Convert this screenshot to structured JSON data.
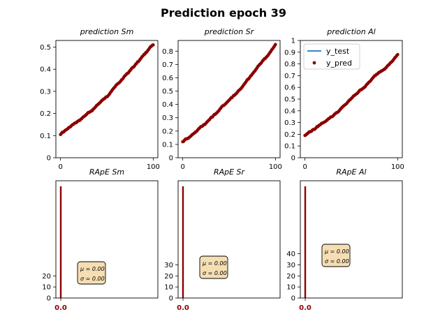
{
  "figure": {
    "title": "Prediction epoch 39"
  },
  "colors": {
    "test": "#1f77b4",
    "pred": "#8b0000",
    "hist": "#8b0000",
    "stat_box": "#f5deb3"
  },
  "legend": {
    "items": [
      "y_test",
      "y_pred"
    ],
    "placement": "top-left"
  },
  "chart_data": [
    {
      "type": "line",
      "title": "prediction Sm",
      "x": [
        0,
        100
      ],
      "y_start": 0.105,
      "y_end": 0.51,
      "xlim": [
        -5,
        105
      ],
      "ylim": [
        0,
        0.53
      ],
      "xticks": [
        0,
        100
      ],
      "yticks": [
        0,
        0.1,
        0.2,
        0.3,
        0.4,
        0.5
      ],
      "ytick_labels": [
        "0",
        "0.1",
        "0.2",
        "0.3",
        "0.4",
        "0.5"
      ],
      "series": [
        {
          "name": "y_test",
          "style": "line"
        },
        {
          "name": "y_pred",
          "style": "scatter"
        }
      ]
    },
    {
      "type": "line",
      "title": "prediction Sr",
      "x": [
        0,
        100
      ],
      "y_start": 0.12,
      "y_end": 0.85,
      "xlim": [
        -5,
        105
      ],
      "ylim": [
        0,
        0.88
      ],
      "xticks": [
        0,
        100
      ],
      "yticks": [
        0,
        0.1,
        0.2,
        0.3,
        0.4,
        0.5,
        0.6,
        0.7,
        0.8
      ],
      "ytick_labels": [
        "0",
        "0.1",
        "0.2",
        "0.3",
        "0.4",
        "0.5",
        "0.6",
        "0.7",
        "0.8"
      ],
      "series": [
        {
          "name": "y_test",
          "style": "line"
        },
        {
          "name": "y_pred",
          "style": "scatter"
        }
      ]
    },
    {
      "type": "line",
      "title": "prediction Al",
      "x": [
        0,
        100
      ],
      "y_start": 0.19,
      "y_end": 0.88,
      "xlim": [
        -5,
        105
      ],
      "ylim": [
        0,
        1.0
      ],
      "xticks": [
        0,
        100
      ],
      "yticks": [
        0,
        0.1,
        0.2,
        0.3,
        0.4,
        0.5,
        0.6,
        0.7,
        0.8,
        0.9,
        1.0
      ],
      "ytick_labels": [
        "0",
        "0.1",
        "0.2",
        "0.3",
        "0.4",
        "0.5",
        "0.6",
        "0.7",
        "0.8",
        "0.9",
        "1"
      ],
      "legend": true,
      "series": [
        {
          "name": "y_test",
          "style": "line"
        },
        {
          "name": "y_pred",
          "style": "scatter"
        }
      ]
    },
    {
      "type": "bar",
      "title": "RApE Sm",
      "bar_value": 0.0,
      "bar_count": 101,
      "ylim": [
        0,
        106
      ],
      "yticks": [
        0,
        10,
        20
      ],
      "ytick_labels": [
        "0",
        "10",
        "20"
      ],
      "xtick_label": "0.0",
      "stats": {
        "mu": "μ = 0.00",
        "sigma": "σ = 0.00"
      }
    },
    {
      "type": "bar",
      "title": "RApE Sr",
      "bar_value": 0.0,
      "bar_count": 101,
      "ylim": [
        0,
        106
      ],
      "yticks": [
        0,
        10,
        20,
        30
      ],
      "ytick_labels": [
        "0",
        "10",
        "20",
        "30"
      ],
      "xtick_label": "0.0",
      "stats": {
        "mu": "μ = 0.00",
        "sigma": "σ = 0.00"
      }
    },
    {
      "type": "bar",
      "title": "RApE Al",
      "bar_value": 0.0,
      "bar_count": 101,
      "ylim": [
        0,
        106
      ],
      "yticks": [
        0,
        10,
        20,
        30,
        40
      ],
      "ytick_labels": [
        "0",
        "10",
        "20",
        "30",
        "40"
      ],
      "xtick_label": "0.0",
      "stats": {
        "mu": "μ = 0.00",
        "sigma": "σ = 0.00"
      }
    }
  ]
}
